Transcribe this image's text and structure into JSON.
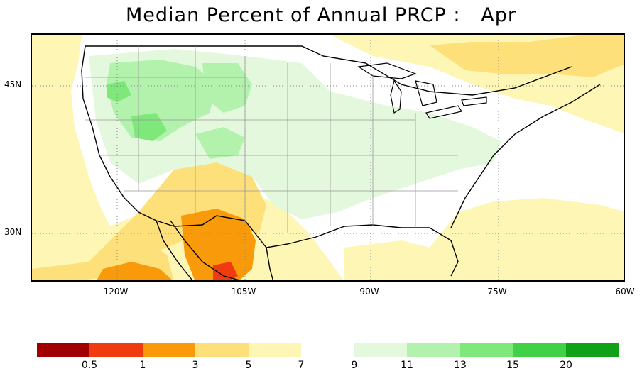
{
  "title": "Median Percent of Annual PRCP :   Apr",
  "latitude_labels": [
    "45N",
    "30N"
  ],
  "longitude_labels": [
    "120W",
    "105W",
    "90W",
    "75W",
    "60W"
  ],
  "legend": {
    "swatch_colors": [
      "#a00000",
      "#f03a0f",
      "#f89a0a",
      "#fde07a",
      "#fef6b4",
      "#ffffff",
      "#e3f8dd",
      "#b3f2ac",
      "#7ee87a",
      "#40d146",
      "#10a119"
    ],
    "labels": [
      "0.5",
      "1",
      "3",
      "5",
      "7",
      "9",
      "11",
      "13",
      "15",
      "20"
    ]
  },
  "fill_colors": {
    "dark_red": "#a00000",
    "red": "#f03a0f",
    "orange": "#f89a0a",
    "gold": "#fde07a",
    "pale_yellow": "#fef6b4",
    "pale_green": "#e3f8dd",
    "light_green": "#b3f2ac",
    "green": "#7ee87a"
  }
}
